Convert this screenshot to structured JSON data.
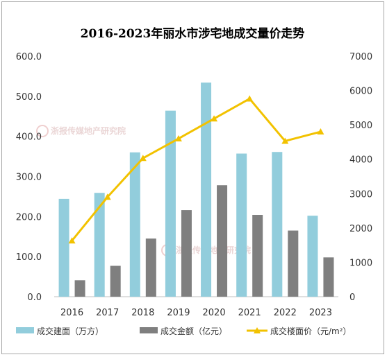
{
  "chart_data": {
    "type": "bar",
    "title": "2016-2023年丽水市涉宅地成交量价走势",
    "categories": [
      "2016",
      "2017",
      "2018",
      "2019",
      "2020",
      "2021",
      "2022",
      "2023"
    ],
    "series": [
      {
        "name": "成交建面（万方）",
        "kind": "bar",
        "axis": "left",
        "color": "#92cddc",
        "values": [
          244,
          259,
          360,
          464,
          534,
          357,
          361,
          202
        ]
      },
      {
        "name": "成交金额（亿元）",
        "kind": "bar",
        "axis": "left",
        "color": "#7f7f7f",
        "values": [
          41,
          77,
          145,
          216,
          278,
          204,
          165,
          98
        ]
      },
      {
        "name": "成交楼面价（元/m²）",
        "kind": "line",
        "axis": "right",
        "color": "#f2c200",
        "values": [
          1630,
          2900,
          4030,
          4600,
          5180,
          5760,
          4530,
          4800
        ]
      }
    ],
    "ylim": [
      0,
      600
    ],
    "y2lim": [
      0,
      7000
    ],
    "yticks": [
      "0.0",
      "100.0",
      "200.0",
      "300.0",
      "400.0",
      "500.0",
      "600.0"
    ],
    "y2ticks": [
      "0",
      "1000",
      "2000",
      "3000",
      "4000",
      "5000",
      "6000",
      "7000"
    ],
    "grid": false,
    "legend_position": "bottom",
    "watermark": "浙报传媒地产研究院"
  }
}
